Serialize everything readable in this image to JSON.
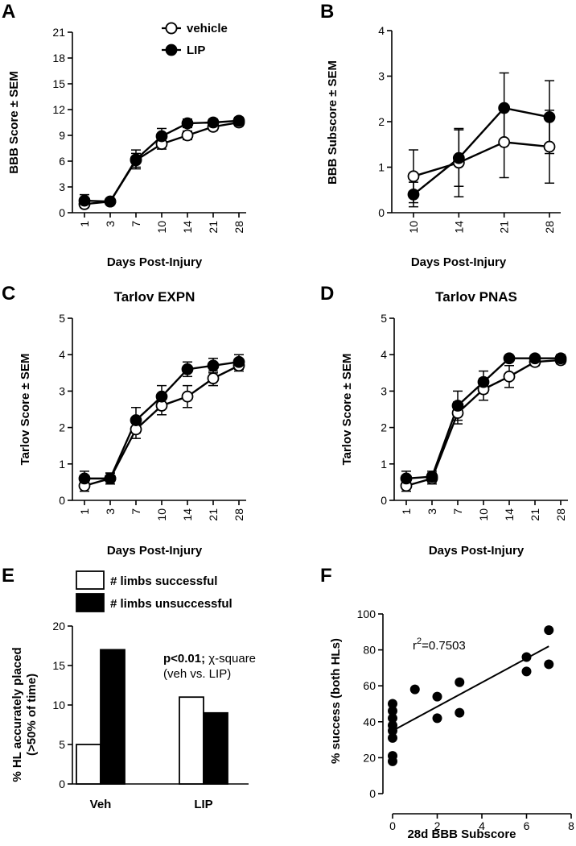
{
  "chart_data": [
    {
      "id": "A",
      "panel_label": "A",
      "type": "line",
      "title": "",
      "xlabel": "Days Post-Injury",
      "ylabel": "BBB Score ± SEM",
      "categories": [
        "1",
        "3",
        "7",
        "10",
        "14",
        "21",
        "28"
      ],
      "ylim": [
        0,
        21
      ],
      "yticks": [
        "0",
        "3",
        "6",
        "9",
        "12",
        "15",
        "18",
        "21"
      ],
      "legend": {
        "position": "top-right",
        "entries": [
          "vehicle",
          "LIP"
        ]
      },
      "series": [
        {
          "name": "vehicle",
          "marker": "open",
          "values": [
            1.0,
            1.3,
            6.1,
            8.0,
            9.0,
            10.0,
            10.5
          ],
          "err": [
            0.4,
            0.3,
            0.8,
            0.6,
            0.5,
            0.4,
            0.4
          ]
        },
        {
          "name": "LIP",
          "marker": "filled",
          "values": [
            1.4,
            1.3,
            6.2,
            8.9,
            10.4,
            10.5,
            10.7
          ],
          "err": [
            0.7,
            0.3,
            1.1,
            0.9,
            0.5,
            0.4,
            0.4
          ]
        }
      ]
    },
    {
      "id": "B",
      "panel_label": "B",
      "type": "line",
      "title": "",
      "xlabel": "Days Post-Injury",
      "ylabel": "BBB Subscore ± SEM",
      "categories": [
        "10",
        "14",
        "21",
        "28"
      ],
      "ylim": [
        0,
        4
      ],
      "yticks": [
        "0",
        "1",
        "2",
        "3",
        "4"
      ],
      "series": [
        {
          "name": "vehicle",
          "marker": "open",
          "values": [
            0.8,
            1.1,
            1.55,
            1.45
          ],
          "err": [
            0.58,
            0.75,
            0.78,
            0.8
          ]
        },
        {
          "name": "LIP",
          "marker": "filled",
          "values": [
            0.4,
            1.2,
            2.3,
            2.1
          ],
          "err": [
            0.27,
            0.62,
            0.77,
            0.8
          ]
        }
      ]
    },
    {
      "id": "C",
      "panel_label": "C",
      "type": "line",
      "title": "Tarlov EXPN",
      "xlabel": "Days Post-Injury",
      "ylabel": "Tarlov  Score ± SEM",
      "categories": [
        "1",
        "3",
        "7",
        "10",
        "14",
        "21",
        "28"
      ],
      "ylim": [
        0,
        5
      ],
      "yticks": [
        "0",
        "1",
        "2",
        "3",
        "4",
        "5"
      ],
      "series": [
        {
          "name": "vehicle",
          "marker": "open",
          "values": [
            0.4,
            0.6,
            1.95,
            2.6,
            2.85,
            3.35,
            3.7
          ],
          "err": [
            0.15,
            0.15,
            0.25,
            0.25,
            0.3,
            0.2,
            0.15
          ]
        },
        {
          "name": "LIP",
          "marker": "filled",
          "values": [
            0.6,
            0.6,
            2.2,
            2.85,
            3.6,
            3.7,
            3.8
          ],
          "err": [
            0.2,
            0.15,
            0.35,
            0.3,
            0.2,
            0.2,
            0.2
          ]
        }
      ]
    },
    {
      "id": "D",
      "panel_label": "D",
      "type": "line",
      "title": "Tarlov PNAS",
      "xlabel": "Days Post-Injury",
      "ylabel": "Tarlov  Score ± SEM",
      "categories": [
        "1",
        "3",
        "7",
        "10",
        "14",
        "21",
        "28"
      ],
      "ylim": [
        0,
        5
      ],
      "yticks": [
        "0",
        "1",
        "2",
        "3",
        "4",
        "5"
      ],
      "series": [
        {
          "name": "vehicle",
          "marker": "open",
          "values": [
            0.4,
            0.6,
            2.4,
            3.05,
            3.4,
            3.8,
            3.85
          ],
          "err": [
            0.15,
            0.15,
            0.3,
            0.3,
            0.3,
            0.1,
            0.1
          ]
        },
        {
          "name": "LIP",
          "marker": "filled",
          "values": [
            0.6,
            0.65,
            2.6,
            3.25,
            3.9,
            3.9,
            3.9
          ],
          "err": [
            0.2,
            0.15,
            0.4,
            0.3,
            0.05,
            0.05,
            0.1
          ]
        }
      ]
    },
    {
      "id": "E",
      "panel_label": "E",
      "type": "bar",
      "title": "",
      "xlabel": "",
      "ylabel": "% HL accurately placed (>50% of time)",
      "ylabel_line1": "% HL accurately placed",
      "ylabel_line2": "(>50% of time)",
      "categories": [
        "Veh",
        "LIP"
      ],
      "ylim": [
        0,
        20
      ],
      "yticks": [
        "0",
        "5",
        "10",
        "15",
        "20"
      ],
      "legend": {
        "position": "top",
        "entries": [
          "# limbs successful",
          "# limbs unsuccessful"
        ]
      },
      "series": [
        {
          "name": "# limbs successful",
          "color": "#ffffff",
          "values": [
            5,
            11
          ]
        },
        {
          "name": "# limbs unsuccessful",
          "color": "#000000",
          "values": [
            17,
            9
          ]
        }
      ],
      "annotation": {
        "line1_bold": "p<0.01;",
        "line1_rest": " χ-square",
        "line2": "(veh vs. LIP)"
      }
    },
    {
      "id": "F",
      "panel_label": "F",
      "type": "scatter",
      "title": "",
      "xlabel": "28d BBB Subscore",
      "ylabel": "% success (both HLs)",
      "xlim": [
        0,
        8
      ],
      "ylim": [
        0,
        100
      ],
      "xticks": [
        "0",
        "2",
        "4",
        "6",
        "8"
      ],
      "yticks": [
        "0",
        "20",
        "40",
        "60",
        "80",
        "100"
      ],
      "points": [
        [
          0,
          18
        ],
        [
          0,
          21
        ],
        [
          0,
          31
        ],
        [
          0,
          35
        ],
        [
          0,
          38
        ],
        [
          0,
          42
        ],
        [
          0,
          46
        ],
        [
          0,
          50
        ],
        [
          1,
          58
        ],
        [
          2,
          42
        ],
        [
          2,
          54
        ],
        [
          3,
          45
        ],
        [
          3,
          62
        ],
        [
          6,
          68
        ],
        [
          6,
          76
        ],
        [
          7,
          72
        ],
        [
          7,
          91
        ]
      ],
      "fit": {
        "x": [
          0,
          7
        ],
        "y": [
          35,
          82
        ]
      },
      "annotation": {
        "prefix": "r",
        "sup": "2",
        "suffix": "=0.7503"
      }
    }
  ]
}
